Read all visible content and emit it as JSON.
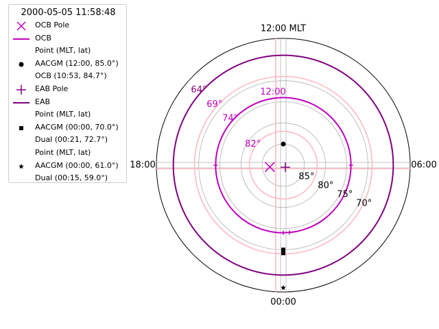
{
  "chart_data": {
    "type": "polar-scatter",
    "title": "2000-05-05 11:58:48",
    "projection": "MLT-latitude polar dial",
    "mlt_labels": [
      {
        "mlt": "12:00",
        "text": "12:00 MLT"
      },
      {
        "mlt": "06:00",
        "text": "06:00"
      },
      {
        "mlt": "00:00",
        "text": "00:00"
      },
      {
        "mlt": "18:00",
        "text": "18:00"
      }
    ],
    "lat_range": [
      60,
      90
    ],
    "lat_grid": [
      70,
      75,
      80,
      85
    ],
    "lat_tick_labels": [
      "85$^\\circ$",
      "80$^\\circ$",
      "75$^\\circ$",
      "70$^\\circ$"
    ],
    "lat_tick_display": [
      "85°",
      "80°",
      "75°",
      "70°"
    ],
    "grid": true,
    "boundary_grid": {
      "color": "#ffb6c1",
      "circles": [
        82,
        74,
        69
      ],
      "radial_mlt": [
        0,
        6,
        12,
        18
      ],
      "mlt_tick": "12:00",
      "lat_labels": [
        {
          "lat": 64,
          "text": "64°",
          "color": "#800080"
        },
        {
          "lat": 69,
          "text": "69°",
          "color": "#bf00bf"
        },
        {
          "lat": 74,
          "text": "74°",
          "color": "#bf00bf"
        },
        {
          "lat": 82,
          "text": "82°",
          "color": "#bf00bf"
        }
      ]
    },
    "series": [
      {
        "name": "OCB Pole",
        "marker": "x",
        "color": "#bf00bf",
        "points": [
          {
            "mlt": 18.5,
            "lat": 86.8
          }
        ]
      },
      {
        "name": "OCB",
        "style": "line",
        "color": "#bf00bf",
        "lat": 74
      },
      {
        "name": "EAB Pole",
        "marker": "+",
        "color": "#800080",
        "points": [
          {
            "mlt": 3.0,
            "lat": 89.3
          }
        ]
      },
      {
        "name": "EAB",
        "style": "line",
        "color": "#800080",
        "lat": 64
      },
      {
        "name": "AACGM (12:00, 85.0$^\\circ$)",
        "display": "AACGM (12:00, 85.0$^\\circ$)",
        "marker": "circle",
        "color": "#000000",
        "points": [
          {
            "mlt": 12.0,
            "lat": 85.0
          }
        ]
      },
      {
        "name": "OCB (10:53, 84.7$^\\circ$)",
        "display": "OCB (10:53, 84.7$^\\circ$)",
        "marker": "circle",
        "color": "#000000",
        "points": []
      },
      {
        "name": "AACGM (00:00, 70.0$^\\circ$)",
        "display": "AACGM (00:00, 70.0$^\\circ$)",
        "marker": "square",
        "color": "#000000",
        "points": [
          {
            "mlt": 0.0,
            "lat": 70.0
          }
        ]
      },
      {
        "name": "Dual (00:21, 72.7$^\\circ$)",
        "display": "Dual (00:21, 72.7$^\\circ$)",
        "marker": "square",
        "color": "#000000",
        "points": []
      },
      {
        "name": "AACGM (00:00, 61.0$^\\circ$)",
        "display": "AACGM (00:00, 61.0$^\\circ$)",
        "marker": "star",
        "color": "#000000",
        "points": [
          {
            "mlt": 0.0,
            "lat": 61.0
          }
        ]
      },
      {
        "name": "Dual (00:15, 59.0$^\\circ$)",
        "display": "Dual (00:15, 59.0$^\\circ$)",
        "marker": "star",
        "color": "#000000",
        "points": []
      }
    ],
    "boundary_markers": [
      {
        "color": "#bf00bf",
        "marker": "+",
        "mlt": 6,
        "lat": 74
      },
      {
        "color": "#bf00bf",
        "marker": "+",
        "mlt": 18,
        "lat": 74
      },
      {
        "color": "#bf00bf",
        "marker": "+",
        "mlt": 0,
        "lat": 74
      },
      {
        "color": "#bf00bf",
        "marker": "+",
        "mlt": 0.35,
        "lat": 74
      }
    ],
    "legend": {
      "placement": "upper-left",
      "title": "2000-05-05 11:58:48",
      "entries": [
        {
          "kind": "marker-x",
          "color": "#bf00bf",
          "label": "OCB Pole"
        },
        {
          "kind": "line",
          "color": "#bf00bf",
          "label": "OCB"
        },
        {
          "kind": "header",
          "label": "Point (MLT, lat)"
        },
        {
          "kind": "marker-circle",
          "color": "#000000",
          "label": "AACGM (12:00, 85.0$^\\circ$)",
          "display": "AACGM (12:00, 85.0°)"
        },
        {
          "kind": "sub",
          "label": "OCB (10:53, 84.7$^\\circ$)",
          "display": "OCB (10:53, 84.7°)"
        },
        {
          "kind": "marker-plus",
          "color": "#800080",
          "label": "EAB Pole"
        },
        {
          "kind": "line",
          "color": "#800080",
          "label": "EAB"
        },
        {
          "kind": "header",
          "label": "Point (MLT, lat)"
        },
        {
          "kind": "marker-square",
          "color": "#000000",
          "label": "AACGM (00:00, 70.0$^\\circ$)",
          "display": "AACGM (00:00, 70.0°)"
        },
        {
          "kind": "sub",
          "label": "Dual (00:21, 72.7$^\\circ$)",
          "display": "Dual (00:21, 72.7°)"
        },
        {
          "kind": "header",
          "label": "Point (MLT, lat)"
        },
        {
          "kind": "marker-star",
          "color": "#000000",
          "label": "AACGM (00:00, 61.0$^\\circ$)",
          "display": "AACGM (00:00, 61.0°)"
        },
        {
          "kind": "sub",
          "label": "Dual (00:15, 59.0$^\\circ$)",
          "display": "Dual (00:15, 59.0°)"
        }
      ]
    }
  }
}
